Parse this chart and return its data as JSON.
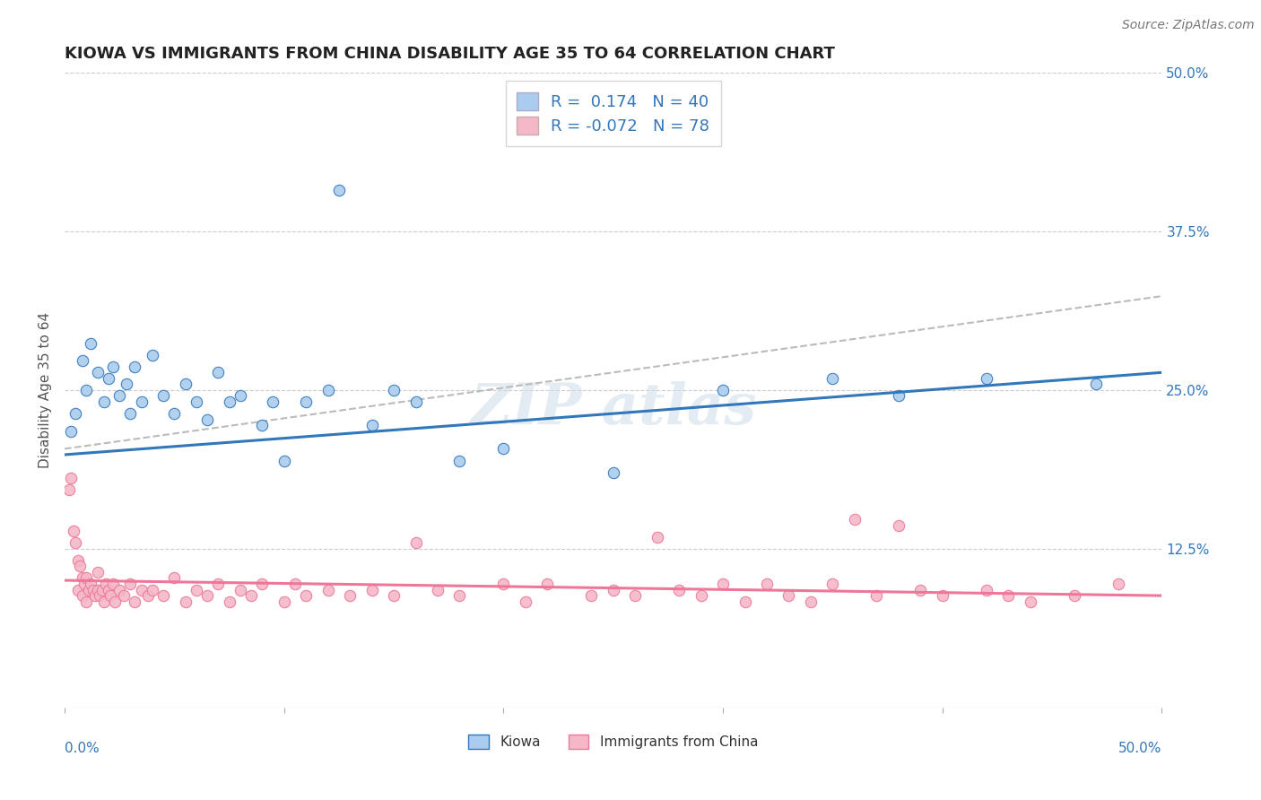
{
  "title": "KIOWA VS IMMIGRANTS FROM CHINA DISABILITY AGE 35 TO 64 CORRELATION CHART",
  "source": "Source: ZipAtlas.com",
  "ylabel": "Disability Age 35 to 64",
  "xlim": [
    0.0,
    50.0
  ],
  "ylim": [
    0.0,
    54.0
  ],
  "kiowa_color": "#aaccee",
  "china_color": "#f5b8c8",
  "kiowa_line_color": "#3377bb",
  "china_line_color": "#ee7799",
  "trend_dash_color": "#bbbbbb",
  "background_color": "#ffffff",
  "grid_color": "#cccccc",
  "right_tick_vals": [
    0,
    12.5,
    25.0,
    37.5,
    50.0
  ],
  "right_tick_labels": [
    "",
    "12.5%",
    "25.0%",
    "37.5%",
    "50.0%"
  ],
  "kiowa_scatter": [
    [
      0.3,
      23.5
    ],
    [
      0.5,
      25.0
    ],
    [
      0.8,
      29.5
    ],
    [
      1.0,
      27.0
    ],
    [
      1.2,
      31.0
    ],
    [
      1.5,
      28.5
    ],
    [
      1.8,
      26.0
    ],
    [
      2.0,
      28.0
    ],
    [
      2.2,
      29.0
    ],
    [
      2.5,
      26.5
    ],
    [
      2.8,
      27.5
    ],
    [
      3.0,
      25.0
    ],
    [
      3.2,
      29.0
    ],
    [
      3.5,
      26.0
    ],
    [
      4.0,
      30.0
    ],
    [
      4.5,
      26.5
    ],
    [
      5.0,
      25.0
    ],
    [
      5.5,
      27.5
    ],
    [
      6.0,
      26.0
    ],
    [
      6.5,
      24.5
    ],
    [
      7.0,
      28.5
    ],
    [
      7.5,
      26.0
    ],
    [
      8.0,
      26.5
    ],
    [
      9.0,
      24.0
    ],
    [
      9.5,
      26.0
    ],
    [
      10.0,
      21.0
    ],
    [
      11.0,
      26.0
    ],
    [
      12.0,
      27.0
    ],
    [
      12.5,
      44.0
    ],
    [
      14.0,
      24.0
    ],
    [
      15.0,
      27.0
    ],
    [
      16.0,
      26.0
    ],
    [
      18.0,
      21.0
    ],
    [
      20.0,
      22.0
    ],
    [
      25.0,
      20.0
    ],
    [
      30.0,
      27.0
    ],
    [
      35.0,
      28.0
    ],
    [
      38.0,
      26.5
    ],
    [
      42.0,
      28.0
    ],
    [
      47.0,
      27.5
    ]
  ],
  "china_scatter": [
    [
      0.2,
      18.5
    ],
    [
      0.3,
      19.5
    ],
    [
      0.4,
      15.0
    ],
    [
      0.5,
      14.0
    ],
    [
      0.6,
      12.5
    ],
    [
      0.6,
      10.0
    ],
    [
      0.7,
      12.0
    ],
    [
      0.8,
      11.0
    ],
    [
      0.8,
      9.5
    ],
    [
      0.9,
      10.5
    ],
    [
      1.0,
      11.0
    ],
    [
      1.0,
      9.0
    ],
    [
      1.1,
      10.0
    ],
    [
      1.2,
      10.5
    ],
    [
      1.3,
      10.0
    ],
    [
      1.4,
      9.5
    ],
    [
      1.5,
      10.0
    ],
    [
      1.5,
      11.5
    ],
    [
      1.6,
      9.5
    ],
    [
      1.7,
      10.0
    ],
    [
      1.8,
      9.0
    ],
    [
      1.9,
      10.5
    ],
    [
      2.0,
      10.0
    ],
    [
      2.1,
      9.5
    ],
    [
      2.2,
      10.5
    ],
    [
      2.3,
      9.0
    ],
    [
      2.5,
      10.0
    ],
    [
      2.7,
      9.5
    ],
    [
      3.0,
      10.5
    ],
    [
      3.2,
      9.0
    ],
    [
      3.5,
      10.0
    ],
    [
      3.8,
      9.5
    ],
    [
      4.0,
      10.0
    ],
    [
      4.5,
      9.5
    ],
    [
      5.0,
      11.0
    ],
    [
      5.5,
      9.0
    ],
    [
      6.0,
      10.0
    ],
    [
      6.5,
      9.5
    ],
    [
      7.0,
      10.5
    ],
    [
      7.5,
      9.0
    ],
    [
      8.0,
      10.0
    ],
    [
      8.5,
      9.5
    ],
    [
      9.0,
      10.5
    ],
    [
      10.0,
      9.0
    ],
    [
      10.5,
      10.5
    ],
    [
      11.0,
      9.5
    ],
    [
      12.0,
      10.0
    ],
    [
      13.0,
      9.5
    ],
    [
      14.0,
      10.0
    ],
    [
      15.0,
      9.5
    ],
    [
      16.0,
      14.0
    ],
    [
      17.0,
      10.0
    ],
    [
      18.0,
      9.5
    ],
    [
      20.0,
      10.5
    ],
    [
      21.0,
      9.0
    ],
    [
      22.0,
      10.5
    ],
    [
      24.0,
      9.5
    ],
    [
      25.0,
      10.0
    ],
    [
      26.0,
      9.5
    ],
    [
      27.0,
      14.5
    ],
    [
      28.0,
      10.0
    ],
    [
      29.0,
      9.5
    ],
    [
      30.0,
      10.5
    ],
    [
      31.0,
      9.0
    ],
    [
      32.0,
      10.5
    ],
    [
      33.0,
      9.5
    ],
    [
      34.0,
      9.0
    ],
    [
      35.0,
      10.5
    ],
    [
      36.0,
      16.0
    ],
    [
      37.0,
      9.5
    ],
    [
      38.0,
      15.5
    ],
    [
      39.0,
      10.0
    ],
    [
      40.0,
      9.5
    ],
    [
      42.0,
      10.0
    ],
    [
      43.0,
      9.5
    ],
    [
      44.0,
      9.0
    ],
    [
      46.0,
      9.5
    ],
    [
      48.0,
      10.5
    ]
  ],
  "kiowa_trend": [
    0.0,
    50.0,
    21.5,
    28.5
  ],
  "china_trend": [
    0.0,
    50.0,
    10.8,
    9.5
  ],
  "dash_trend": [
    0.0,
    50.0,
    22.0,
    35.0
  ]
}
